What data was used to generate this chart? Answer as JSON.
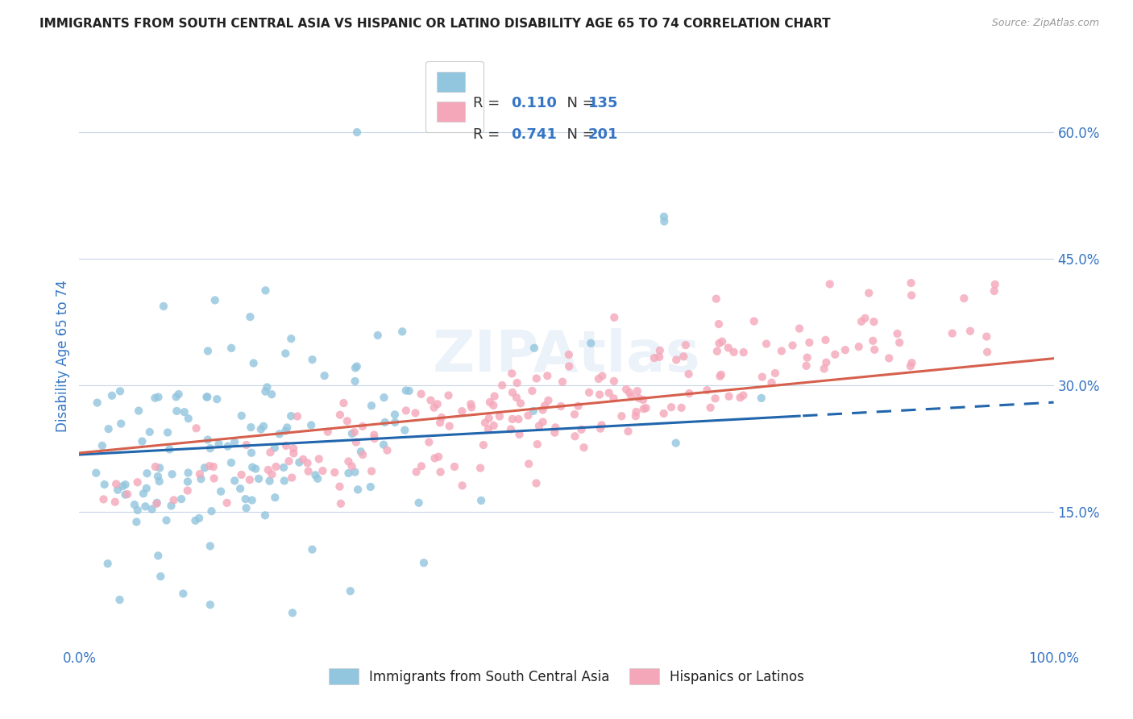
{
  "title": "IMMIGRANTS FROM SOUTH CENTRAL ASIA VS HISPANIC OR LATINO DISABILITY AGE 65 TO 74 CORRELATION CHART",
  "source": "Source: ZipAtlas.com",
  "ylabel": "Disability Age 65 to 74",
  "xlabel": "",
  "xlim": [
    0,
    1.0
  ],
  "ylim": [
    -0.01,
    0.68
  ],
  "yticks": [
    0.15,
    0.3,
    0.45,
    0.6
  ],
  "ytick_labels": [
    "15.0%",
    "30.0%",
    "45.0%",
    "60.0%"
  ],
  "xticks": [
    0.0,
    0.25,
    0.5,
    0.75,
    1.0
  ],
  "xtick_labels": [
    "0.0%",
    "",
    "",
    "",
    "100.0%"
  ],
  "blue_color": "#92c5de",
  "blue_line_color": "#2166ac",
  "pink_color": "#f4a7b9",
  "pink_line_color": "#d6604d",
  "label_color": "#3575c4",
  "R_blue": 0.11,
  "N_blue": 135,
  "R_pink": 0.741,
  "N_pink": 201,
  "blue_intercept": 0.218,
  "blue_slope": 0.062,
  "pink_intercept": 0.22,
  "pink_slope": 0.112,
  "legend_label_blue": "Immigrants from South Central Asia",
  "legend_label_pink": "Hispanics or Latinos",
  "watermark": "ZIPAtlas",
  "background_color": "#ffffff",
  "grid_color": "#c8d4e8",
  "title_color": "#222222",
  "axis_label_color": "#3575c4",
  "seed_blue": 42,
  "seed_pink": 77
}
